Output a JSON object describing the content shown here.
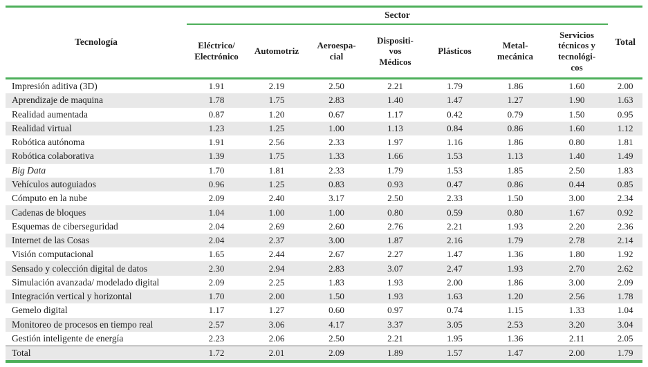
{
  "colors": {
    "accent_green": "#4daf5a",
    "stripe_gray": "#e8e8e8",
    "text": "#1f1f1f",
    "total_divider_gray": "#6e6e6e"
  },
  "table": {
    "group_header": "Sector",
    "tech_header": "Tecnología",
    "total_header": "Total",
    "sector_columns": [
      "Eléctrico/\nElectrónico",
      "Automotriz",
      "Aeroespa-\ncial",
      "Dispositi-\nvos\nMédicos",
      "Plásticos",
      "Metal-\nmecánica",
      "Servicios\ntécnicos y\ntecnológi-\ncos"
    ],
    "rows": [
      {
        "tech": "Impresión aditiva (3D)",
        "values": [
          "1.91",
          "2.19",
          "2.50",
          "2.21",
          "1.79",
          "1.86",
          "1.60",
          "2.00"
        ]
      },
      {
        "tech": "Aprendizaje de maquina",
        "values": [
          "1.78",
          "1.75",
          "2.83",
          "1.40",
          "1.47",
          "1.27",
          "1.90",
          "1.63"
        ]
      },
      {
        "tech": "Realidad aumentada",
        "values": [
          "0.87",
          "1.20",
          "0.67",
          "1.17",
          "0.42",
          "0.79",
          "1.50",
          "0.95"
        ]
      },
      {
        "tech": "Realidad virtual",
        "values": [
          "1.23",
          "1.25",
          "1.00",
          "1.13",
          "0.84",
          "0.86",
          "1.60",
          "1.12"
        ]
      },
      {
        "tech": "Robótica autónoma",
        "values": [
          "1.91",
          "2.56",
          "2.33",
          "1.97",
          "1.16",
          "1.86",
          "0.80",
          "1.81"
        ]
      },
      {
        "tech": "Robótica colaborativa",
        "values": [
          "1.39",
          "1.75",
          "1.33",
          "1.66",
          "1.53",
          "1.13",
          "1.40",
          "1.49"
        ]
      },
      {
        "tech": "Big Data",
        "italic": true,
        "values": [
          "1.70",
          "1.81",
          "2.33",
          "1.79",
          "1.53",
          "1.85",
          "2.50",
          "1.83"
        ]
      },
      {
        "tech": "Vehículos autoguiados",
        "values": [
          "0.96",
          "1.25",
          "0.83",
          "0.93",
          "0.47",
          "0.86",
          "0.44",
          "0.85"
        ]
      },
      {
        "tech": "Cómputo en la nube",
        "values": [
          "2.09",
          "2.40",
          "3.17",
          "2.50",
          "2.33",
          "1.50",
          "3.00",
          "2.34"
        ]
      },
      {
        "tech": "Cadenas de bloques",
        "values": [
          "1.04",
          "1.00",
          "1.00",
          "0.80",
          "0.59",
          "0.80",
          "1.67",
          "0.92"
        ]
      },
      {
        "tech": "Esquemas de ciberseguridad",
        "values": [
          "2.04",
          "2.69",
          "2.60",
          "2.76",
          "2.21",
          "1.93",
          "2.20",
          "2.36"
        ]
      },
      {
        "tech": "Internet de las Cosas",
        "values": [
          "2.04",
          "2.37",
          "3.00",
          "1.87",
          "2.16",
          "1.79",
          "2.78",
          "2.14"
        ]
      },
      {
        "tech": "Visión computacional",
        "values": [
          "1.65",
          "2.44",
          "2.67",
          "2.27",
          "1.47",
          "1.36",
          "1.80",
          "1.92"
        ]
      },
      {
        "tech": "Sensado y colección digital de datos",
        "values": [
          "2.30",
          "2.94",
          "2.83",
          "3.07",
          "2.47",
          "1.93",
          "2.70",
          "2.62"
        ]
      },
      {
        "tech": "Simulación avanzada/ modelado digital",
        "values": [
          "2.09",
          "2.25",
          "1.83",
          "1.93",
          "2.00",
          "1.86",
          "3.00",
          "2.09"
        ]
      },
      {
        "tech": "Integración vertical y horizontal",
        "values": [
          "1.70",
          "2.00",
          "1.50",
          "1.93",
          "1.63",
          "1.20",
          "2.56",
          "1.78"
        ]
      },
      {
        "tech": "Gemelo digital",
        "values": [
          "1.17",
          "1.27",
          "0.60",
          "0.97",
          "0.74",
          "1.15",
          "1.33",
          "1.04"
        ]
      },
      {
        "tech": "Monitoreo de procesos en tiempo real",
        "values": [
          "2.57",
          "3.06",
          "4.17",
          "3.37",
          "3.05",
          "2.53",
          "3.20",
          "3.04"
        ]
      },
      {
        "tech": "Gestión inteligente de energía",
        "values": [
          "2.23",
          "2.06",
          "2.50",
          "2.21",
          "1.95",
          "1.36",
          "2.11",
          "2.05"
        ]
      },
      {
        "tech": "Total",
        "is_total": true,
        "values": [
          "1.72",
          "2.01",
          "2.09",
          "1.89",
          "1.57",
          "1.47",
          "2.00",
          "1.79"
        ]
      }
    ]
  }
}
